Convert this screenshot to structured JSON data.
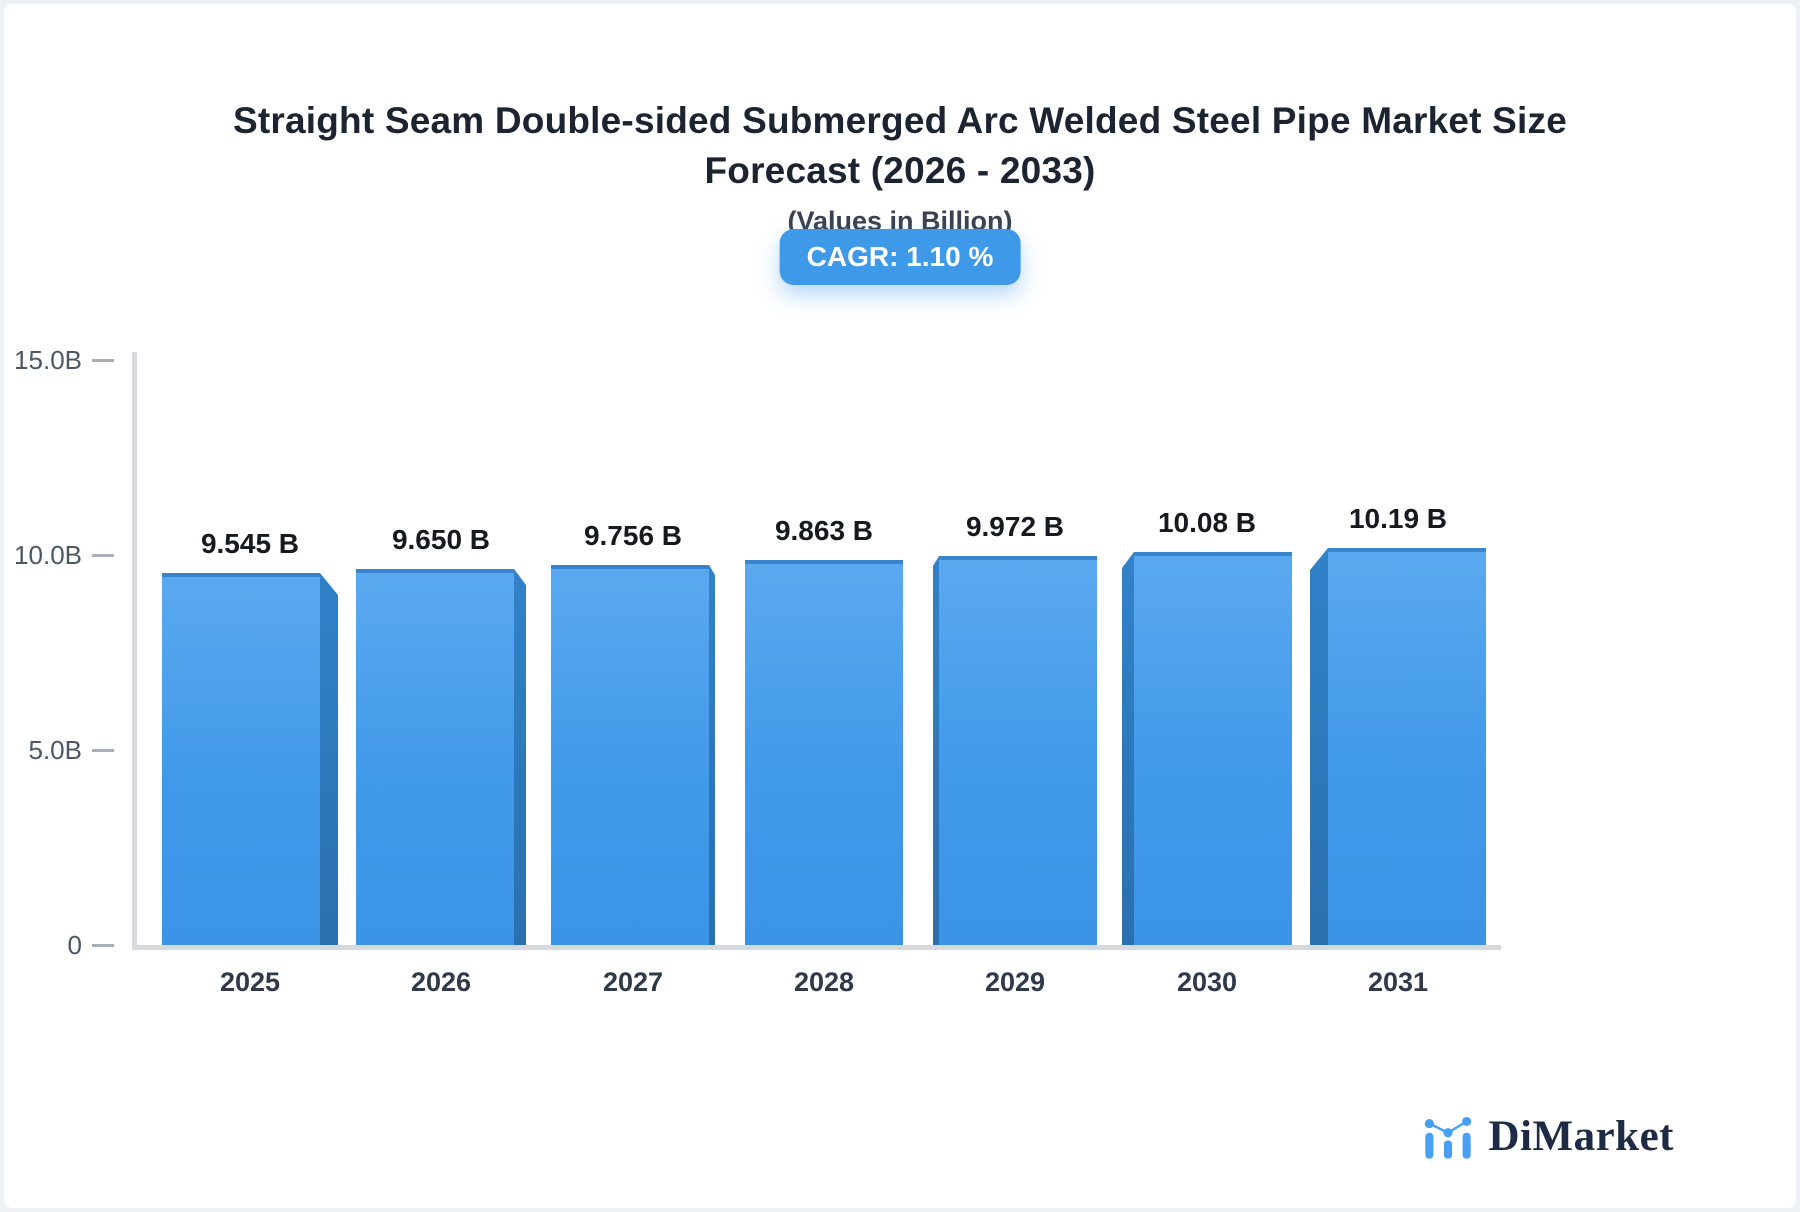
{
  "page": {
    "background": "#edf0f4",
    "card_background": "#ffffff"
  },
  "header": {
    "title": "Straight Seam Double-sided Submerged Arc Welded Steel Pipe Market Size Forecast (2026 - 2033)",
    "subtitle": "(Values in Billion)",
    "cagr_badge": "CAGR: 1.10 %",
    "badge_color": "#3e99e9"
  },
  "chart_data": {
    "type": "bar",
    "title": "Straight Seam Double-sided Submerged Arc Welded Steel Pipe Market Size Forecast (2026 - 2033)",
    "subtitle": "(Values in Billion)",
    "cagr_pct": 1.1,
    "unit": "Billion",
    "categories": [
      "2025",
      "2026",
      "2027",
      "2028",
      "2029",
      "2030",
      "2031"
    ],
    "values": [
      9.545,
      9.65,
      9.756,
      9.863,
      9.972,
      10.08,
      10.19
    ],
    "value_labels": [
      "9.545 B",
      "9.650 B",
      "9.756 B",
      "9.863 B",
      "9.972 B",
      "10.08 B",
      "10.19 B"
    ],
    "ylim": [
      0,
      15
    ],
    "y_ticks": [
      {
        "label": "15.0B",
        "value": 15
      },
      {
        "label": "10.0B",
        "value": 10
      },
      {
        "label": "5.0B",
        "value": 5
      },
      {
        "label": "0",
        "value": 0
      }
    ],
    "grid": false,
    "legend": false,
    "bar_color_top": "#5aa9ef",
    "bar_color_bottom": "#3b94e6",
    "bar_edge_color": "#3884cf",
    "bar_side_color": "#2e7cc0",
    "axis_color": "#d6dade"
  },
  "footer": {
    "logo_text": "DiMarket",
    "logo_text_color": "#1d2b45",
    "logo_icon_color": "#47a0f5"
  }
}
